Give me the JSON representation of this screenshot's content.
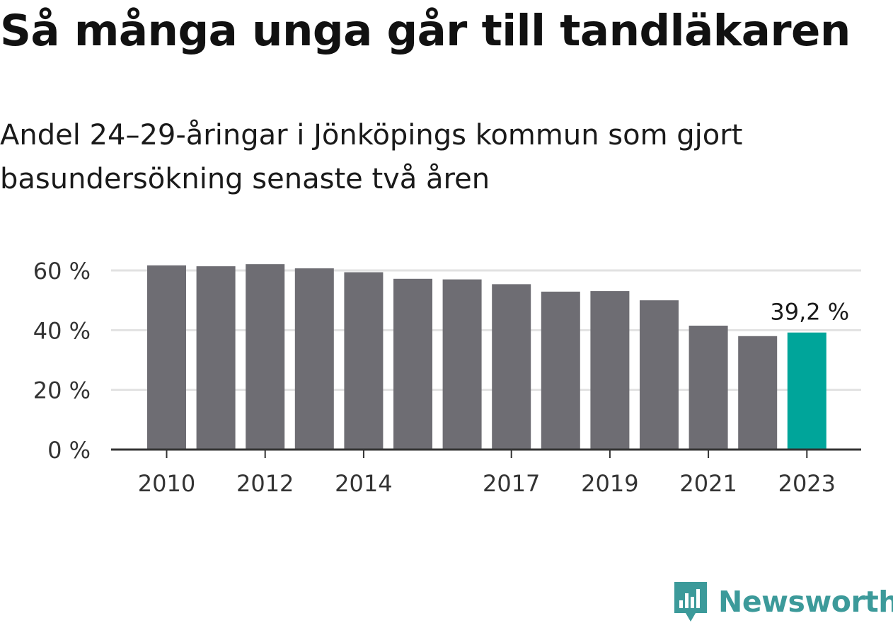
{
  "title": "Så många unga går till tandläkaren",
  "subtitle": "Andel 24–29-åringar i Jönköpings kommun som gjort basundersökning senaste två åren",
  "brand": {
    "name": "Newsworthy",
    "icon": "bar-chart-bubble-logo",
    "color": "#3c9a9a"
  },
  "colors": {
    "bar": "#6e6d73",
    "highlight": "#00a59a",
    "grid": "#e2e2e2",
    "axis": "#333333"
  },
  "chart_data": {
    "type": "bar",
    "categories": [
      "2010",
      "2011",
      "2012",
      "2013",
      "2014",
      "2015",
      "2016",
      "2017",
      "2018",
      "2019",
      "2020",
      "2021",
      "2022",
      "2023"
    ],
    "values": [
      61.7,
      61.4,
      62.1,
      60.7,
      59.4,
      57.2,
      57.0,
      55.4,
      52.9,
      53.1,
      50.0,
      41.5,
      38.0,
      39.2
    ],
    "highlight_index": 13,
    "data_labels": [
      {
        "index": 13,
        "text": "39,2 %"
      }
    ],
    "ylim": [
      0,
      60
    ],
    "yticks": [
      0,
      20,
      40,
      60
    ],
    "ytick_labels": [
      "0 %",
      "20 %",
      "40 %",
      "60 %"
    ],
    "xtick_labels": [
      {
        "index": 0,
        "text": "2010"
      },
      {
        "index": 2,
        "text": "2012"
      },
      {
        "index": 4,
        "text": "2014"
      },
      {
        "index": 7,
        "text": "2017"
      },
      {
        "index": 9,
        "text": "2019"
      },
      {
        "index": 11,
        "text": "2021"
      },
      {
        "index": 13,
        "text": "2023"
      }
    ],
    "grid": true,
    "xlabel": "",
    "ylabel": ""
  }
}
